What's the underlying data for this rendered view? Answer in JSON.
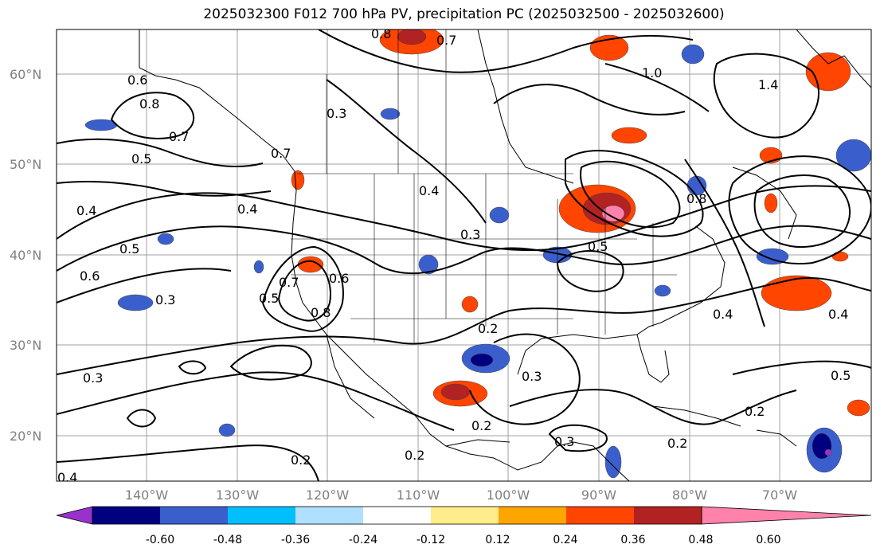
{
  "title": "2025032300 F012 700 hPa PV, precipitation PC (2025032500 - 2025032600)",
  "lat_ticks": [
    "60°N",
    "50°N",
    "40°N",
    "30°N",
    "20°N"
  ],
  "lon_ticks": [
    "140°W",
    "130°W",
    "120°W",
    "110°W",
    "100°W",
    "90°W",
    "80°W",
    "70°W"
  ],
  "contour_labels": [
    "0.8",
    "0.7",
    "1.0",
    "1.4",
    "0.6",
    "0.8",
    "0.7",
    "0.5",
    "0.3",
    "0.7",
    "0.4",
    "0.4",
    "0.5",
    "0.6",
    "0.3",
    "0.5",
    "0.7",
    "0.6",
    "0.8",
    "0.4",
    "0.3",
    "0.5",
    "0.8",
    "0.4",
    "0.2",
    "0.3",
    "0.2",
    "0.3",
    "0.2",
    "0.2",
    "0.2",
    "0.5",
    "0.4",
    "0.3",
    "0.2",
    "0.4"
  ],
  "colorbar": {
    "ticks": [
      "-0.60",
      "-0.48",
      "-0.36",
      "-0.24",
      "-0.12",
      "0.12",
      "0.24",
      "0.36",
      "0.48",
      "0.60"
    ],
    "colors": [
      "#9932cc",
      "#000080",
      "#3a5fcd",
      "#00bfff",
      "#b0e0ff",
      "#ffffff",
      "#ffec8b",
      "#ffa500",
      "#ff4500",
      "#b22222",
      "#ff82ab"
    ]
  },
  "map": {
    "projection": "PlateCarree",
    "lon_range": [
      -150,
      -60
    ],
    "lat_range": [
      15,
      65
    ],
    "grid": true,
    "field_contours": "700 hPa PV",
    "field_shaded": "precipitation PC"
  }
}
